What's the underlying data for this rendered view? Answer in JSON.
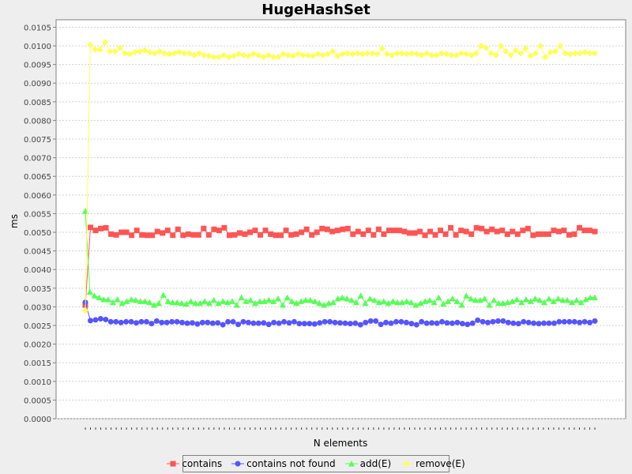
{
  "chart_data": {
    "type": "line",
    "title": "HugeHashSet",
    "xlabel": "N elements",
    "ylabel": "ms",
    "ylim": [
      0,
      0.0107
    ],
    "yticks": [
      "0.0000",
      "0.0005",
      "0.0010",
      "0.0015",
      "0.0020",
      "0.0025",
      "0.0030",
      "0.0035",
      "0.0040",
      "0.0045",
      "0.0050",
      "0.0055",
      "0.0060",
      "0.0065",
      "0.0070",
      "0.0075",
      "0.0080",
      "0.0085",
      "0.0090",
      "0.0095",
      "0.0100",
      "0.0105"
    ],
    "grid": true,
    "legend_position": "bottom",
    "series": [
      {
        "name": "contains",
        "color": "#ff5555",
        "marker": "square",
        "values": [
          0.00305,
          0.00513,
          0.00505,
          0.0051,
          0.00512,
          0.00495,
          0.00493,
          0.005,
          0.005,
          0.00492,
          0.00505,
          0.00493,
          0.00492,
          0.00492,
          0.00502,
          0.00498,
          0.00505,
          0.00492,
          0.00508,
          0.00492,
          0.00495,
          0.00493,
          0.00493,
          0.0051,
          0.00493,
          0.00508,
          0.00505,
          0.00512,
          0.00492,
          0.00493,
          0.00498,
          0.00495,
          0.005,
          0.00505,
          0.00493,
          0.00505,
          0.00495,
          0.00492,
          0.00492,
          0.00505,
          0.00493,
          0.00495,
          0.005,
          0.00508,
          0.00493,
          0.005,
          0.0051,
          0.00508,
          0.00502,
          0.00505,
          0.00508,
          0.0051,
          0.00495,
          0.00502,
          0.00495,
          0.00505,
          0.00493,
          0.00508,
          0.00495,
          0.00505,
          0.00505,
          0.00505,
          0.00502,
          0.00498,
          0.00498,
          0.00502,
          0.00492,
          0.00502,
          0.00493,
          0.00505,
          0.00495,
          0.00512,
          0.00493,
          0.00505,
          0.00502,
          0.00495,
          0.00512,
          0.0051,
          0.00502,
          0.00508,
          0.00502,
          0.00505,
          0.00495,
          0.00502,
          0.00495,
          0.00505,
          0.0051,
          0.00492,
          0.00495,
          0.00495,
          0.00495,
          0.00505,
          0.00502,
          0.00505,
          0.00493,
          0.00495,
          0.00512,
          0.00505,
          0.00505,
          0.00502
        ]
      },
      {
        "name": "contains not found",
        "color": "#5555ff",
        "marker": "circle",
        "values": [
          0.00312,
          0.00263,
          0.00265,
          0.00268,
          0.00266,
          0.0026,
          0.0026,
          0.00258,
          0.0026,
          0.0026,
          0.00257,
          0.0026,
          0.0026,
          0.00255,
          0.00262,
          0.00258,
          0.00258,
          0.0026,
          0.0026,
          0.00258,
          0.00256,
          0.00257,
          0.00254,
          0.00258,
          0.00258,
          0.00256,
          0.00257,
          0.00252,
          0.0026,
          0.0026,
          0.00253,
          0.0026,
          0.00258,
          0.00256,
          0.00256,
          0.00257,
          0.00253,
          0.00258,
          0.00256,
          0.0026,
          0.00257,
          0.0026,
          0.00255,
          0.00255,
          0.00255,
          0.00254,
          0.00257,
          0.0026,
          0.0026,
          0.00258,
          0.00257,
          0.00256,
          0.00255,
          0.00256,
          0.00252,
          0.00258,
          0.00262,
          0.00262,
          0.00253,
          0.00258,
          0.00256,
          0.0026,
          0.0026,
          0.00258,
          0.00255,
          0.00252,
          0.0026,
          0.00256,
          0.00257,
          0.00256,
          0.0026,
          0.00257,
          0.00256,
          0.00258,
          0.00255,
          0.00253,
          0.00256,
          0.00264,
          0.0026,
          0.00258,
          0.0026,
          0.00262,
          0.00262,
          0.00258,
          0.00256,
          0.00255,
          0.0026,
          0.00258,
          0.00256,
          0.00255,
          0.00256,
          0.00256,
          0.00256,
          0.0026,
          0.0026,
          0.0026,
          0.0026,
          0.00258,
          0.0026,
          0.00258,
          0.00262
        ]
      },
      {
        "name": "add(E)",
        "color": "#55ff55",
        "marker": "triangle",
        "values": [
          0.00557,
          0.0034,
          0.0033,
          0.00325,
          0.0032,
          0.0032,
          0.00312,
          0.0032,
          0.0031,
          0.00315,
          0.0032,
          0.00318,
          0.00315,
          0.00315,
          0.00312,
          0.00305,
          0.0031,
          0.00332,
          0.00315,
          0.00312,
          0.00312,
          0.0031,
          0.00308,
          0.00315,
          0.0031,
          0.0031,
          0.00315,
          0.0031,
          0.00318,
          0.0031,
          0.00315,
          0.00312,
          0.00315,
          0.00305,
          0.00325,
          0.00315,
          0.00318,
          0.0031,
          0.00315,
          0.00315,
          0.00318,
          0.00315,
          0.00322,
          0.00305,
          0.00325,
          0.00315,
          0.0031,
          0.00315,
          0.00318,
          0.00318,
          0.00315,
          0.0031,
          0.00305,
          0.0031,
          0.00312,
          0.00322,
          0.00325,
          0.00322,
          0.00318,
          0.00312,
          0.0033,
          0.0031,
          0.00322,
          0.00318,
          0.00312,
          0.00315,
          0.0031,
          0.00315,
          0.00312,
          0.00312,
          0.00315,
          0.00312,
          0.00305,
          0.0031,
          0.00315,
          0.00318,
          0.00312,
          0.00325,
          0.00308,
          0.00315,
          0.00322,
          0.00315,
          0.00305,
          0.0033,
          0.00322,
          0.00318,
          0.00318,
          0.00322,
          0.00305,
          0.00318,
          0.0031,
          0.0031,
          0.00312,
          0.00315,
          0.0032,
          0.00312,
          0.0032,
          0.00315,
          0.00322,
          0.00318,
          0.00312,
          0.00322,
          0.00315,
          0.00322,
          0.00318,
          0.00318,
          0.00312,
          0.00318,
          0.00312,
          0.0032,
          0.00325,
          0.00325
        ]
      },
      {
        "name": "remove(E)",
        "color": "#ffff55",
        "marker": "diamond",
        "values": [
          0.0029,
          0.01003,
          0.0099,
          0.0099,
          0.0101,
          0.00985,
          0.00985,
          0.00995,
          0.0098,
          0.00978,
          0.00983,
          0.00985,
          0.00988,
          0.00983,
          0.0098,
          0.00985,
          0.0098,
          0.00978,
          0.0098,
          0.00983,
          0.0098,
          0.0098,
          0.00975,
          0.0098,
          0.00975,
          0.00973,
          0.0097,
          0.0097,
          0.00975,
          0.0097,
          0.00973,
          0.00978,
          0.00975,
          0.00973,
          0.00978,
          0.00975,
          0.0097,
          0.00975,
          0.0097,
          0.0097,
          0.00978,
          0.00975,
          0.00973,
          0.00978,
          0.00975,
          0.00975,
          0.00973,
          0.00978,
          0.00975,
          0.00978,
          0.00985,
          0.00973,
          0.00978,
          0.0098,
          0.00978,
          0.0098,
          0.00978,
          0.0098,
          0.0098,
          0.00978,
          0.00993,
          0.00978,
          0.00975,
          0.0098,
          0.0098,
          0.00978,
          0.0098,
          0.00978,
          0.00975,
          0.0098,
          0.00975,
          0.00975,
          0.0098,
          0.00978,
          0.00975,
          0.00975,
          0.0098,
          0.00978,
          0.00975,
          0.0098,
          0.01,
          0.00995,
          0.0098,
          0.00975,
          0.01,
          0.00985,
          0.00975,
          0.00988,
          0.0098,
          0.00993,
          0.00973,
          0.0098,
          0.01,
          0.0097,
          0.00983,
          0.00985,
          0.01,
          0.0098,
          0.00978,
          0.0098,
          0.0098,
          0.00983,
          0.0098,
          0.0098
        ]
      }
    ]
  }
}
